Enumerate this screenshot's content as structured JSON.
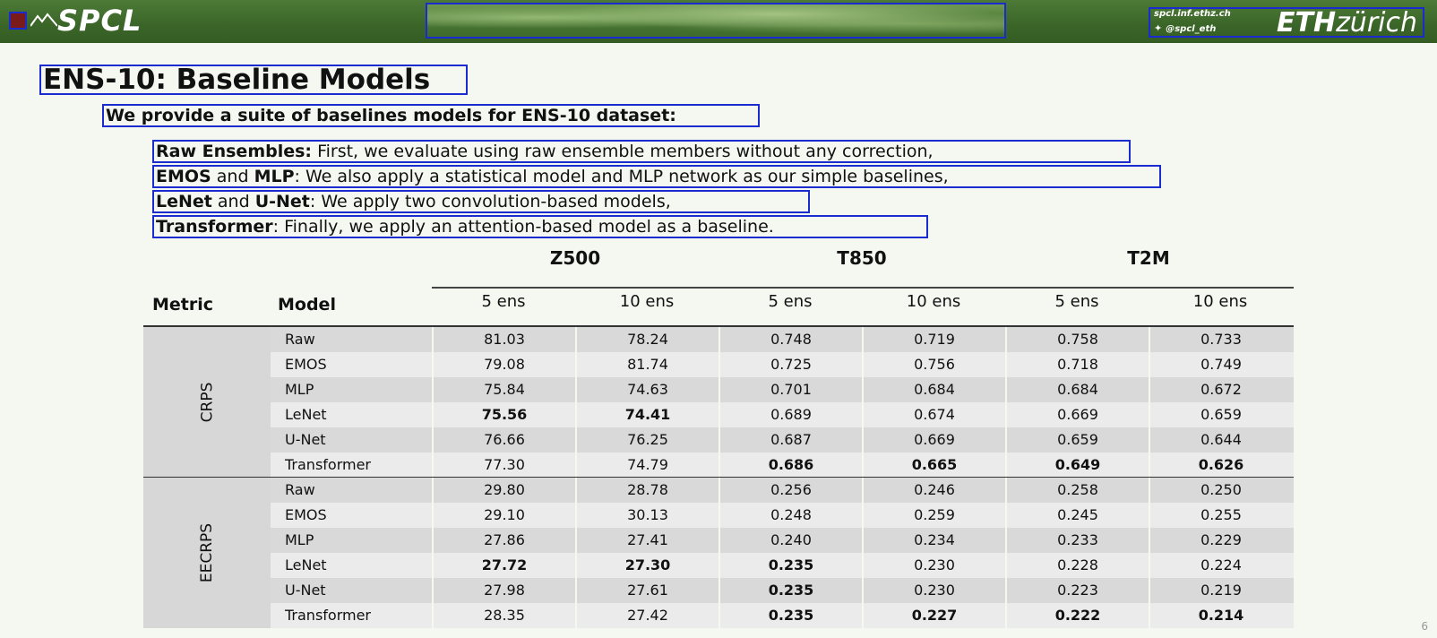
{
  "header": {
    "logo_text": "SPCL",
    "site": "spcl.inf.ethz.ch",
    "handle": "@spcl_eth",
    "eth_bold": "ETH",
    "eth_rest": "zürich"
  },
  "slide": {
    "title": "ENS-10: Baseline Models",
    "subtitle": "We provide a suite of baselines models for ENS-10 dataset:",
    "bullets": [
      {
        "bold": "Raw Ensembles:",
        "rest": " First, we evaluate using raw ensemble members without any correction,"
      },
      {
        "bold": "EMOS",
        "mid": " and ",
        "bold2": "MLP",
        "rest": ": We also apply a statistical model and MLP network as our simple baselines,"
      },
      {
        "bold": "LeNet",
        "mid": " and ",
        "bold2": "U-Net",
        "rest": ": We apply two convolution-based models,"
      },
      {
        "bold": "Transformer",
        "rest": ": Finally, we apply an attention-based model as a baseline."
      }
    ],
    "page_number": "6"
  },
  "table": {
    "col_metric": "Metric",
    "col_model": "Model",
    "groups": [
      "Z500",
      "T850",
      "T2M"
    ],
    "subheaders": [
      "5 ens",
      "10 ens",
      "5 ens",
      "10 ens",
      "5 ens",
      "10 ens"
    ],
    "sections": [
      {
        "metric": "CRPS",
        "rows": [
          {
            "model": "Raw",
            "values": [
              "81.03",
              "78.24",
              "0.748",
              "0.719",
              "0.758",
              "0.733"
            ],
            "bold": [
              false,
              false,
              false,
              false,
              false,
              false
            ]
          },
          {
            "model": "EMOS",
            "values": [
              "79.08",
              "81.74",
              "0.725",
              "0.756",
              "0.718",
              "0.749"
            ],
            "bold": [
              false,
              false,
              false,
              false,
              false,
              false
            ]
          },
          {
            "model": "MLP",
            "values": [
              "75.84",
              "74.63",
              "0.701",
              "0.684",
              "0.684",
              "0.672"
            ],
            "bold": [
              false,
              false,
              false,
              false,
              false,
              false
            ]
          },
          {
            "model": "LeNet",
            "values": [
              "75.56",
              "74.41",
              "0.689",
              "0.674",
              "0.669",
              "0.659"
            ],
            "bold": [
              true,
              true,
              false,
              false,
              false,
              false
            ]
          },
          {
            "model": "U-Net",
            "values": [
              "76.66",
              "76.25",
              "0.687",
              "0.669",
              "0.659",
              "0.644"
            ],
            "bold": [
              false,
              false,
              false,
              false,
              false,
              false
            ]
          },
          {
            "model": "Transformer",
            "values": [
              "77.30",
              "74.79",
              "0.686",
              "0.665",
              "0.649",
              "0.626"
            ],
            "bold": [
              false,
              false,
              true,
              true,
              true,
              true
            ]
          }
        ]
      },
      {
        "metric": "EECRPS",
        "rows": [
          {
            "model": "Raw",
            "values": [
              "29.80",
              "28.78",
              "0.256",
              "0.246",
              "0.258",
              "0.250"
            ],
            "bold": [
              false,
              false,
              false,
              false,
              false,
              false
            ]
          },
          {
            "model": "EMOS",
            "values": [
              "29.10",
              "30.13",
              "0.248",
              "0.259",
              "0.245",
              "0.255"
            ],
            "bold": [
              false,
              false,
              false,
              false,
              false,
              false
            ]
          },
          {
            "model": "MLP",
            "values": [
              "27.86",
              "27.41",
              "0.240",
              "0.234",
              "0.233",
              "0.229"
            ],
            "bold": [
              false,
              false,
              false,
              false,
              false,
              false
            ]
          },
          {
            "model": "LeNet",
            "values": [
              "27.72",
              "27.30",
              "0.235",
              "0.230",
              "0.228",
              "0.224"
            ],
            "bold": [
              true,
              true,
              true,
              false,
              false,
              false
            ]
          },
          {
            "model": "U-Net",
            "values": [
              "27.98",
              "27.61",
              "0.235",
              "0.230",
              "0.223",
              "0.219"
            ],
            "bold": [
              false,
              false,
              true,
              false,
              false,
              false
            ]
          },
          {
            "model": "Transformer",
            "values": [
              "28.35",
              "27.42",
              "0.235",
              "0.227",
              "0.222",
              "0.214"
            ],
            "bold": [
              false,
              false,
              true,
              true,
              true,
              true
            ]
          }
        ]
      }
    ]
  }
}
